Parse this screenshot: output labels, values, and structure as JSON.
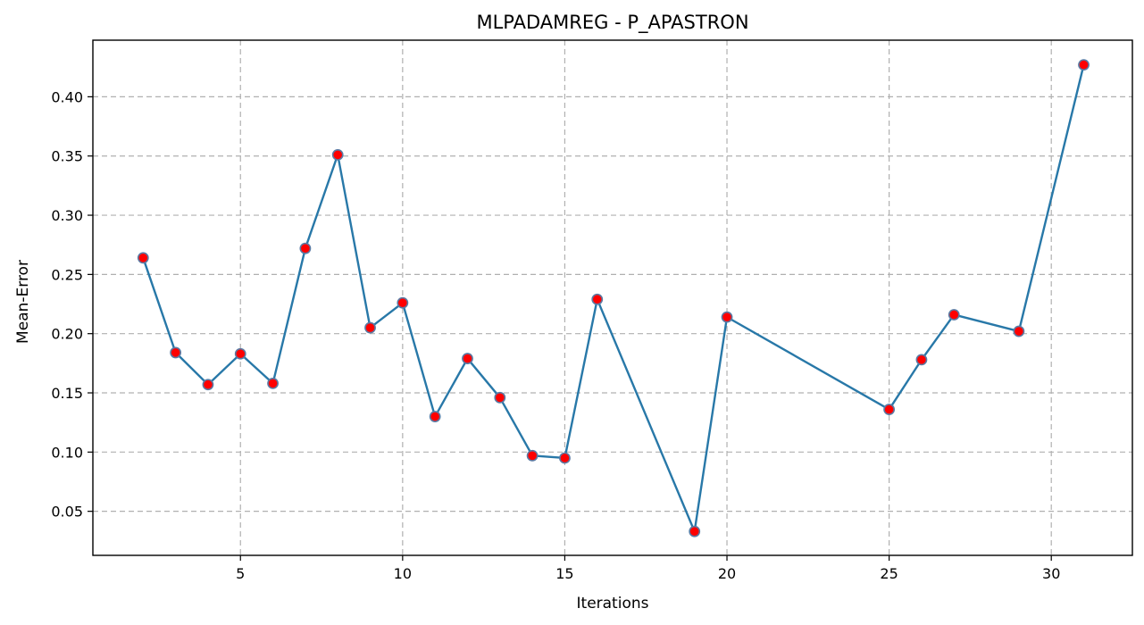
{
  "chart_data": {
    "type": "line",
    "title": "MLPADAMREG - P_APASTRON",
    "xlabel": "Iterations",
    "ylabel": "Mean-Error",
    "xlim": [
      0.45,
      32.5
    ],
    "ylim": [
      0.0128,
      0.4478
    ],
    "xticks": [
      5,
      10,
      15,
      20,
      25,
      30
    ],
    "yticks": [
      0.05,
      0.1,
      0.15,
      0.2,
      0.25,
      0.3,
      0.35,
      0.4
    ],
    "ytick_labels": [
      "0.05",
      "0.10",
      "0.15",
      "0.20",
      "0.25",
      "0.30",
      "0.35",
      "0.40"
    ],
    "grid": true,
    "line_color": "#2878a8",
    "marker_face_color": "#ff0000",
    "marker_edge_color": "#5b7aa3",
    "series": [
      {
        "x": [
          2,
          3,
          4,
          5,
          6,
          7,
          8,
          9,
          10,
          11,
          12,
          13,
          14,
          15,
          16,
          19,
          20,
          25,
          26,
          27,
          29,
          31
        ],
        "y": [
          0.264,
          0.184,
          0.157,
          0.183,
          0.158,
          0.272,
          0.351,
          0.205,
          0.226,
          0.13,
          0.179,
          0.146,
          0.097,
          0.095,
          0.229,
          0.033,
          0.214,
          0.136,
          0.178,
          0.216,
          0.202,
          0.427
        ]
      }
    ]
  }
}
